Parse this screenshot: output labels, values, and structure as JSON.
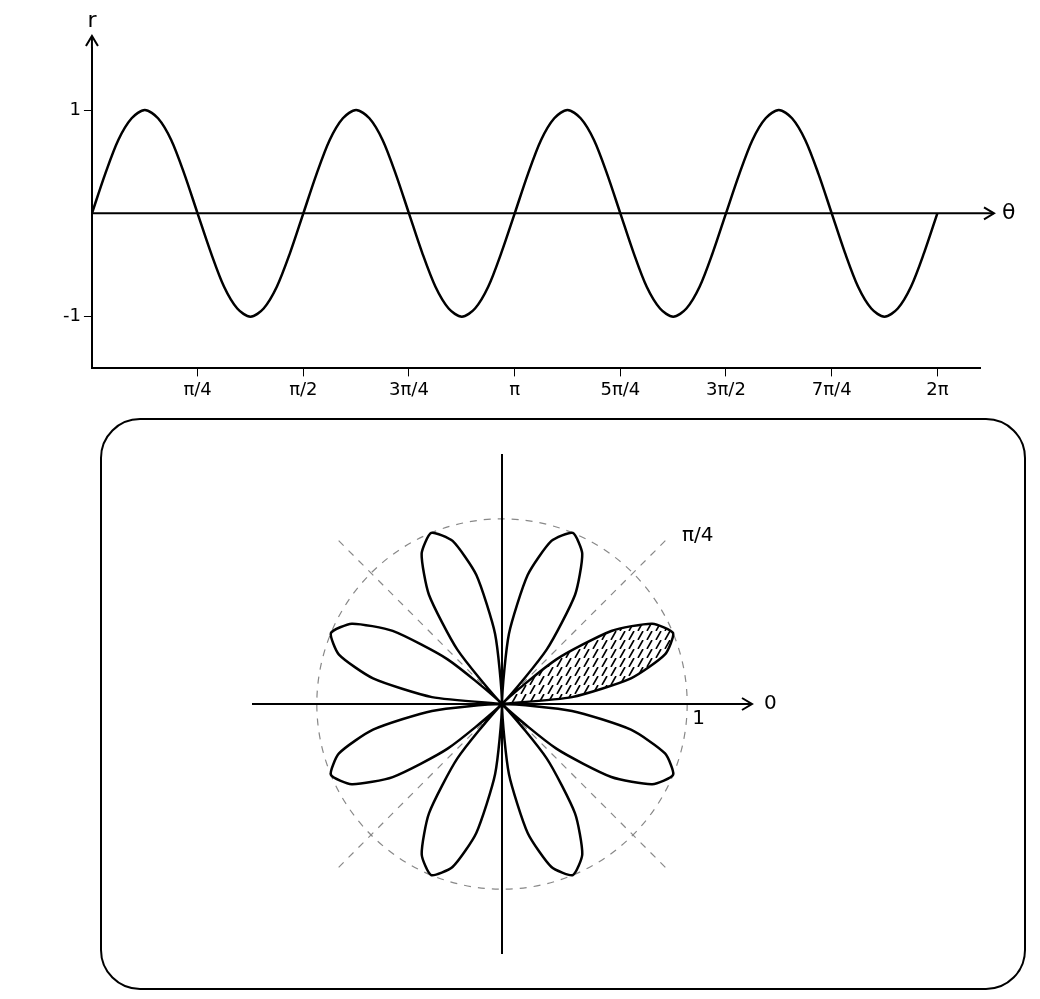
{
  "chart_data": [
    {
      "type": "line",
      "x": [
        0,
        0.098,
        0.196,
        0.295,
        0.393,
        0.491,
        0.589,
        0.687,
        0.785,
        0.884,
        0.982,
        1.08,
        1.178,
        1.276,
        1.374,
        1.473,
        1.571,
        1.669,
        1.767,
        1.865,
        1.963,
        2.062,
        2.16,
        2.258,
        2.356,
        2.454,
        2.553,
        2.651,
        2.749,
        2.847,
        2.945,
        3.043,
        3.142,
        3.24,
        3.338,
        3.436,
        3.534,
        3.632,
        3.731,
        3.829,
        3.927,
        4.025,
        4.123,
        4.222,
        4.32,
        4.418,
        4.516,
        4.614,
        4.712,
        4.811,
        4.909,
        5.007,
        5.105,
        5.203,
        5.301,
        5.4,
        5.498,
        5.596,
        5.694,
        5.792,
        5.89,
        5.989,
        6.087,
        6.185,
        6.283
      ],
      "values": [
        0,
        0.38,
        0.71,
        0.92,
        1,
        0.92,
        0.71,
        0.38,
        0,
        -0.38,
        -0.71,
        -0.92,
        -1,
        -0.92,
        -0.71,
        -0.38,
        0,
        0.38,
        0.71,
        0.92,
        1,
        0.92,
        0.71,
        0.38,
        0,
        -0.38,
        -0.71,
        -0.92,
        -1,
        -0.92,
        -0.71,
        -0.38,
        0,
        0.38,
        0.71,
        0.92,
        1,
        0.92,
        0.71,
        0.38,
        0,
        -0.38,
        -0.71,
        -0.92,
        -1,
        -0.92,
        -0.71,
        -0.38,
        0,
        0.38,
        0.71,
        0.92,
        1,
        0.92,
        0.71,
        0.38,
        0,
        -0.38,
        -0.71,
        -0.92,
        -1,
        -0.92,
        -0.71,
        -0.38,
        0
      ],
      "xlim": [
        0,
        6.6
      ],
      "ylim": [
        -1.5,
        1.6
      ],
      "xticks": [
        {
          "value": 0.785,
          "label": "π/4"
        },
        {
          "value": 1.571,
          "label": "π/2"
        },
        {
          "value": 2.356,
          "label": "3π/4"
        },
        {
          "value": 3.142,
          "label": "π"
        },
        {
          "value": 3.927,
          "label": "5π/4"
        },
        {
          "value": 4.712,
          "label": "3π/2"
        },
        {
          "value": 5.498,
          "label": "7π/4"
        },
        {
          "value": 6.283,
          "label": "2π"
        }
      ],
      "yticks": [
        -1,
        1
      ],
      "x_label": "θ",
      "y_label": "r",
      "grid": false,
      "color": "#000000"
    },
    {
      "type": "polar",
      "theta": [
        0,
        0.098,
        0.196,
        0.295,
        0.393,
        0.491,
        0.589,
        0.687,
        0.785,
        0.884,
        0.982,
        1.08,
        1.178,
        1.276,
        1.374,
        1.473,
        1.571,
        1.669,
        1.767,
        1.865,
        1.963,
        2.062,
        2.16,
        2.258,
        2.356,
        2.454,
        2.553,
        2.651,
        2.749,
        2.847,
        2.945,
        3.043,
        3.142,
        3.24,
        3.338,
        3.436,
        3.534,
        3.632,
        3.731,
        3.829,
        3.927,
        4.025,
        4.123,
        4.222,
        4.32,
        4.418,
        4.516,
        4.614,
        4.712,
        4.811,
        4.909,
        5.007,
        5.105,
        5.203,
        5.301,
        5.4,
        5.498,
        5.596,
        5.694,
        5.792,
        5.89,
        5.989,
        6.087,
        6.185,
        6.283
      ],
      "r": [
        0,
        0.38,
        0.71,
        0.92,
        1,
        0.92,
        0.71,
        0.38,
        0,
        -0.38,
        -0.71,
        -0.92,
        -1,
        -0.92,
        -0.71,
        -0.38,
        0,
        0.38,
        0.71,
        0.92,
        1,
        0.92,
        0.71,
        0.38,
        0,
        -0.38,
        -0.71,
        -0.92,
        -1,
        -0.92,
        -0.71,
        -0.38,
        0,
        0.38,
        0.71,
        0.92,
        1,
        0.92,
        0.71,
        0.38,
        0,
        -0.38,
        -0.71,
        -0.92,
        -1,
        -0.92,
        -0.71,
        -0.38,
        0,
        0.38,
        0.71,
        0.92,
        1,
        0.92,
        0.71,
        0.38,
        0,
        -0.38,
        -0.71,
        -0.92,
        -1,
        -0.92,
        -0.71,
        -0.38,
        0
      ],
      "rlim": [
        0,
        1.35
      ],
      "rticks": [
        1
      ],
      "angle_ticks": [
        {
          "value": 0,
          "label": "0"
        },
        {
          "value": 0.785,
          "label": "π/4"
        }
      ],
      "shaded": [
        0,
        0.785
      ],
      "grid": true,
      "color": "#000000"
    }
  ]
}
